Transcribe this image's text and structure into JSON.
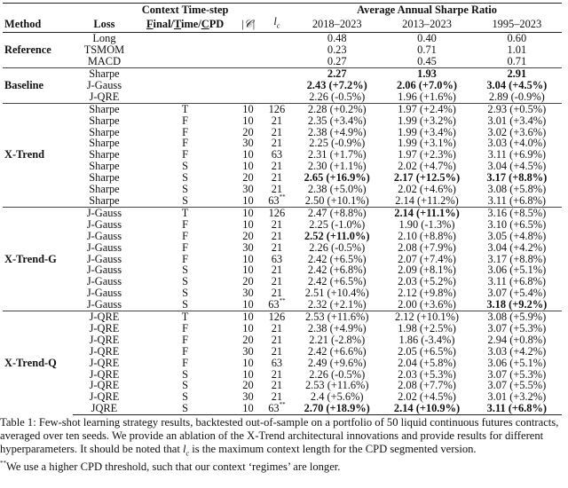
{
  "header": {
    "method": "Method",
    "loss": "Loss",
    "context_title": "Context Time-step",
    "context_sub": [
      {
        "t": "F",
        "u": true
      },
      {
        "t": "inal/",
        "u": false
      },
      {
        "t": "T",
        "u": true
      },
      {
        "t": "ime/",
        "u": false
      },
      {
        "t": "C",
        "u": true
      },
      {
        "t": "PD",
        "u": false
      }
    ],
    "set_size": "|𝒞|",
    "lc_l": "l",
    "lc_sub": "c",
    "sharpe_title": "Average Annual Sharpe Ratio",
    "periods": [
      "2018–2023",
      "2013–2023",
      "1995–2023"
    ]
  },
  "groups": [
    {
      "method": "Reference",
      "rows": [
        {
          "loss": "Long",
          "ctx": "",
          "c": "",
          "lc": "",
          "vals": [
            [
              "0.48",
              0
            ],
            [
              "0.40",
              0
            ],
            [
              "0.60",
              0
            ]
          ]
        },
        {
          "loss": "TSMOM",
          "ctx": "",
          "c": "",
          "lc": "",
          "vals": [
            [
              "0.23",
              0
            ],
            [
              "0.71",
              0
            ],
            [
              "1.01",
              0
            ]
          ]
        },
        {
          "loss": "MACD",
          "ctx": "",
          "c": "",
          "lc": "",
          "vals": [
            [
              "0.27",
              0
            ],
            [
              "0.45",
              0
            ],
            [
              "0.71",
              0
            ]
          ]
        }
      ]
    },
    {
      "method": "Baseline",
      "rows": [
        {
          "loss": "Sharpe",
          "ctx": "",
          "c": "",
          "lc": "",
          "vals": [
            [
              "2.27",
              1
            ],
            [
              "1.93",
              1
            ],
            [
              "2.91",
              1
            ]
          ]
        },
        {
          "loss": "J-Gauss",
          "ctx": "",
          "c": "",
          "lc": "",
          "vals": [
            [
              "2.43 (+7.2%)",
              1
            ],
            [
              "2.06 (+7.0%)",
              1
            ],
            [
              "3.04 (+4.5%)",
              1
            ]
          ]
        },
        {
          "loss": "J-QRE",
          "ctx": "",
          "c": "",
          "lc": "",
          "vals": [
            [
              "2.26 (-0.5%)",
              0
            ],
            [
              "1.96 (+1.6%)",
              0
            ],
            [
              "2.89 (-0.9%)",
              0
            ]
          ]
        }
      ]
    },
    {
      "method": "X-Trend",
      "rows": [
        {
          "loss": "Sharpe",
          "ctx": "T",
          "c": "10",
          "lc": "126",
          "vals": [
            [
              "2.28 (+0.2%)",
              0
            ],
            [
              "1.97 (+2.4%)",
              0
            ],
            [
              "2.93 (+0.5%)",
              0
            ]
          ]
        },
        {
          "loss": "Sharpe",
          "ctx": "F",
          "c": "10",
          "lc": "21",
          "vals": [
            [
              "2.35 (+3.4%)",
              0
            ],
            [
              "1.99 (+3.2%)",
              0
            ],
            [
              "3.01 (+3.4%)",
              0
            ]
          ]
        },
        {
          "loss": "Sharpe",
          "ctx": "F",
          "c": "20",
          "lc": "21",
          "vals": [
            [
              "2.38 (+4.9%)",
              0
            ],
            [
              "1.99 (+3.4%)",
              0
            ],
            [
              "3.02 (+3.6%)",
              0
            ]
          ]
        },
        {
          "loss": "Sharpe",
          "ctx": "F",
          "c": "30",
          "lc": "21",
          "vals": [
            [
              "2.25 (-0.9%)",
              0
            ],
            [
              "1.99 (+3.1%)",
              0
            ],
            [
              "3.03 (+4.0%)",
              0
            ]
          ]
        },
        {
          "loss": "Sharpe",
          "ctx": "F",
          "c": "10",
          "lc": "63",
          "vals": [
            [
              "2.31 (+1.7%)",
              0
            ],
            [
              "1.97 (+2.3%)",
              0
            ],
            [
              "3.11 (+6.9%)",
              0
            ]
          ]
        },
        {
          "loss": "Sharpe",
          "ctx": "S",
          "c": "10",
          "lc": "21",
          "vals": [
            [
              "2.30 (+1.1%)",
              0
            ],
            [
              "2.02 (+4.7%)",
              0
            ],
            [
              "3.04 (+4.5%)",
              0
            ]
          ]
        },
        {
          "loss": "Sharpe",
          "ctx": "S",
          "c": "20",
          "lc": "21",
          "vals": [
            [
              "2.65 (+16.9%)",
              1
            ],
            [
              "2.17 (+12.5%)",
              1
            ],
            [
              "3.17 (+8.8%)",
              1
            ]
          ]
        },
        {
          "loss": "Sharpe",
          "ctx": "S",
          "c": "30",
          "lc": "21",
          "vals": [
            [
              "2.38 (+5.0%)",
              0
            ],
            [
              "2.02 (+4.6%)",
              0
            ],
            [
              "3.08 (+5.8%)",
              0
            ]
          ]
        },
        {
          "loss": "Sharpe",
          "ctx": "S",
          "c": "10",
          "lc": "63",
          "note": "**",
          "vals": [
            [
              "2.50 (+10.1%)",
              0
            ],
            [
              "2.14 (+11.2%)",
              0
            ],
            [
              "3.11 (+6.8%)",
              0
            ]
          ]
        }
      ]
    },
    {
      "method": "X-Trend-G",
      "rows": [
        {
          "loss": "J-Gauss",
          "ctx": "T",
          "c": "10",
          "lc": "126",
          "vals": [
            [
              "2.47 (+8.8%)",
              0
            ],
            [
              "2.14 (+11.1%)",
              1
            ],
            [
              "3.16 (+8.5%)",
              0
            ]
          ]
        },
        {
          "loss": "J-Gauss",
          "ctx": "F",
          "c": "10",
          "lc": "21",
          "vals": [
            [
              "2.25 (-1.0%)",
              0
            ],
            [
              "1.90 (-1.3%)",
              0
            ],
            [
              "3.10 (+6.5%)",
              0
            ]
          ]
        },
        {
          "loss": "J-Gauss",
          "ctx": "F",
          "c": "20",
          "lc": "21",
          "vals": [
            [
              "2.52 (+11.0%)",
              1
            ],
            [
              "2.10 (+8.8%)",
              0
            ],
            [
              "3.05 (+4.8%)",
              0
            ]
          ]
        },
        {
          "loss": "J-Gauss",
          "ctx": "F",
          "c": "30",
          "lc": "21",
          "vals": [
            [
              "2.26 (-0.5%)",
              0
            ],
            [
              "2.08 (+7.9%)",
              0
            ],
            [
              "3.04 (+4.2%)",
              0
            ]
          ]
        },
        {
          "loss": "J-Gauss",
          "ctx": "F",
          "c": "10",
          "lc": "63",
          "vals": [
            [
              "2.42 (+6.5%)",
              0
            ],
            [
              "2.07 (+7.4%)",
              0
            ],
            [
              "3.17 (+8.8%)",
              0
            ]
          ]
        },
        {
          "loss": "J-Gauss",
          "ctx": "S",
          "c": "10",
          "lc": "21",
          "vals": [
            [
              "2.42 (+6.8%)",
              0
            ],
            [
              "2.09 (+8.1%)",
              0
            ],
            [
              "3.06 (+5.1%)",
              0
            ]
          ]
        },
        {
          "loss": "J-Gauss",
          "ctx": "S",
          "c": "20",
          "lc": "21",
          "vals": [
            [
              "2.42 (+6.5%)",
              0
            ],
            [
              "2.03 (+5.2%)",
              0
            ],
            [
              "3.11 (+6.8%)",
              0
            ]
          ]
        },
        {
          "loss": "J-Gauss",
          "ctx": "S",
          "c": "30",
          "lc": "21",
          "vals": [
            [
              "2.51 (+10.4%)",
              0
            ],
            [
              "2.12 (+9.8%)",
              0
            ],
            [
              "3.07 (+5.4%)",
              0
            ]
          ]
        },
        {
          "loss": "J-Gauss",
          "ctx": "S",
          "c": "10",
          "lc": "63",
          "note": "**",
          "vals": [
            [
              "2.32 (+2.1%)",
              0
            ],
            [
              "2.00 (+3.6%)",
              0
            ],
            [
              "3.18 (+9.2%)",
              1
            ]
          ]
        }
      ]
    },
    {
      "method": "X-Trend-Q",
      "rows": [
        {
          "loss": "J-QRE",
          "ctx": "T",
          "c": "10",
          "lc": "126",
          "vals": [
            [
              "2.53 (+11.6%)",
              0
            ],
            [
              "2.12 (+10.1%)",
              0
            ],
            [
              "3.08 (+5.9%)",
              0
            ]
          ]
        },
        {
          "loss": "J-QRE",
          "ctx": "F",
          "c": "10",
          "lc": "21",
          "vals": [
            [
              "2.38 (+4.9%)",
              0
            ],
            [
              "1.98 (+2.5%)",
              0
            ],
            [
              "3.07 (+5.3%)",
              0
            ]
          ]
        },
        {
          "loss": "J-QRE",
          "ctx": "F",
          "c": "20",
          "lc": "21",
          "vals": [
            [
              "2.21 (-2.8%)",
              0
            ],
            [
              "1.86 (-3.4%)",
              0
            ],
            [
              "2.94 (+0.8%)",
              0
            ]
          ]
        },
        {
          "loss": "J-QRE",
          "ctx": "F",
          "c": "30",
          "lc": "21",
          "vals": [
            [
              "2.42 (+6.6%)",
              0
            ],
            [
              "2.05 (+6.5%)",
              0
            ],
            [
              "3.03 (+4.2%)",
              0
            ]
          ]
        },
        {
          "loss": "J-QRE",
          "ctx": "F",
          "c": "10",
          "lc": "63",
          "vals": [
            [
              "2.49 (+9.6%)",
              0
            ],
            [
              "2.04 (+5.8%)",
              0
            ],
            [
              "3.06 (+5.1%)",
              0
            ]
          ]
        },
        {
          "loss": "J-QRE",
          "ctx": "S",
          "c": "10",
          "lc": "21",
          "vals": [
            [
              "2.26 (-0.5%)",
              0
            ],
            [
              "2.03 (+5.3%)",
              0
            ],
            [
              "3.07 (+5.3%)",
              0
            ]
          ]
        },
        {
          "loss": "J-QRE",
          "ctx": "S",
          "c": "20",
          "lc": "21",
          "vals": [
            [
              "2.53 (+11.6%)",
              0
            ],
            [
              "2.08 (+7.7%)",
              0
            ],
            [
              "3.07 (+5.5%)",
              0
            ]
          ]
        },
        {
          "loss": "J-QRE",
          "ctx": "S",
          "c": "30",
          "lc": "21",
          "vals": [
            [
              "2.4 (+5.6%)",
              0
            ],
            [
              "2.02 (+4.5%)",
              0
            ],
            [
              "3.01 (+3.2%)",
              0
            ]
          ]
        },
        {
          "loss": "JQRE",
          "ctx": "S",
          "c": "10",
          "lc": "63",
          "note": "**",
          "vals": [
            [
              "2.70 (+18.9%)",
              1
            ],
            [
              "2.14 (+10.9%)",
              1
            ],
            [
              "3.11 (+6.8%)",
              1
            ]
          ]
        }
      ]
    }
  ],
  "caption": {
    "part1": "Table 1: Few-shot learning strategy results, backtested out-of-sample on a portfolio of 50 liquid continuous futures contracts, averaged over ten seeds. We provide an ablation of the X-Trend architectural innovations and provide results for different hyperparameters. It should be noted that ",
    "lc_l": "l",
    "lc_sub": "c",
    "part2": " is the maximum context length for the CPD segmented version.",
    "footnote_mark": "**",
    "footnote": "We use a higher CPD threshold, such that our context ‘regimes’ are longer."
  }
}
